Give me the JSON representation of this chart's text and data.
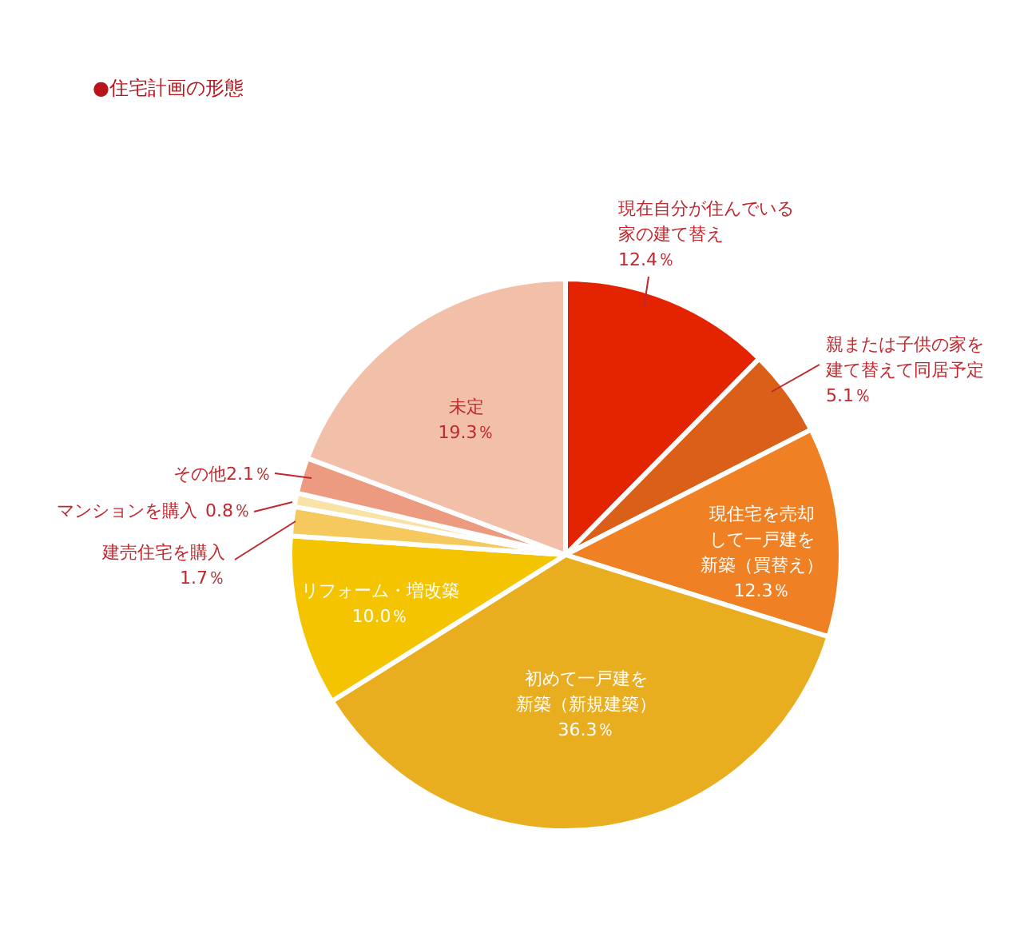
{
  "chart_data": {
    "type": "pie",
    "title": "●住宅計画の形態",
    "categories": [
      "現在自分が住んでいる家の建て替え",
      "親または子供の家を建て替えて同居予定",
      "現住宅を売却して一戸建を新築（買替え）",
      "初めて一戸建を新築（新規建築）",
      "リフォーム・増改築",
      "建売住宅を購入",
      "マンションを購入",
      "その他",
      "未定"
    ],
    "values": [
      12.4,
      5.1,
      12.3,
      36.3,
      10.0,
      1.7,
      0.8,
      2.1,
      19.3
    ],
    "colors": [
      "#e42300",
      "#da5f18",
      "#ef8124",
      "#e9ad20",
      "#f4c400",
      "#f5c95e",
      "#f9e2a6",
      "#ec9b80",
      "#f2bfa9"
    ],
    "value_labels": [
      "12.4％",
      "5.1％",
      "12.3％",
      "36.3％",
      "10.0％",
      "1.7％",
      "0.8％",
      "2.1％",
      "19.3％"
    ]
  }
}
